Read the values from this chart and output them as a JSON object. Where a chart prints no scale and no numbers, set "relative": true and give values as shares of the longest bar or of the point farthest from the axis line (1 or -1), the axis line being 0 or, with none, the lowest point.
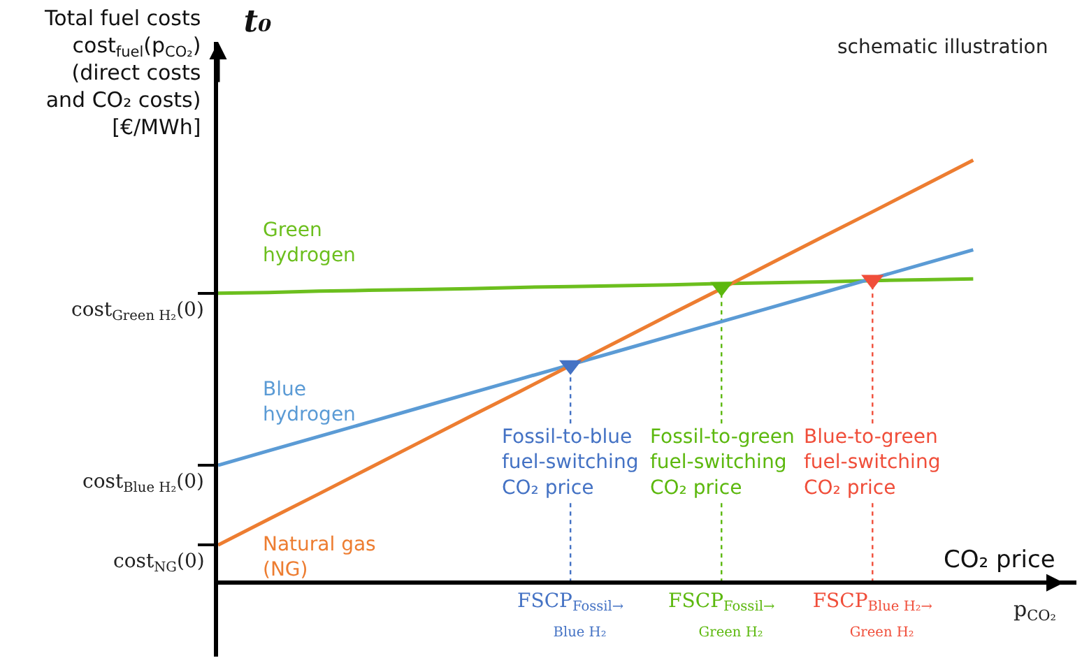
{
  "chart_data": {
    "type": "line",
    "relative": true,
    "title": "t₀",
    "ylabel": "Total fuel costs\ncost$_{fuel}$(p$_{CO₂}$)\n(direct costs\nand CO₂ costs)\n[€/MWh]",
    "xlabel": "CO₂ price",
    "categories": [
      null,
      null,
      null,
      null,
      null,
      null,
      null,
      "FSCP$_{Fossil→ Blue H₂}$",
      null,
      null,
      "FSCP$_{Fossil→ Green H₂}$",
      null,
      null,
      "FSCP$_{Blue H₂→ Green H₂}$",
      null,
      null
    ],
    "series": [
      {
        "name": "Green hydrogen",
        "color": "#6cbf1e",
        "values": [
          0.685,
          0.687,
          0.69,
          0.692,
          0.694,
          0.696,
          0.699,
          0.701,
          0.703,
          0.705,
          0.708,
          0.71,
          0.712,
          0.715,
          0.717,
          0.719
        ]
      },
      {
        "name": "Blue hydrogen",
        "color": "#5b9bd5",
        "values": [
          0.278,
          0.312,
          0.346,
          0.38,
          0.414,
          0.448,
          0.482,
          0.516,
          0.55,
          0.584,
          0.618,
          0.652,
          0.686,
          0.72,
          0.754,
          0.788
        ]
      },
      {
        "name": "Natural gas (NG)",
        "color": "#ed7d31",
        "values": [
          0.089,
          0.15,
          0.21,
          0.271,
          0.332,
          0.393,
          0.453,
          0.514,
          0.575,
          0.636,
          0.696,
          0.757,
          0.818,
          0.878,
          0.939,
          1
        ]
      },
      {
        "type": "scatter",
        "values": [
          null,
          null,
          null,
          null,
          null,
          null,
          null,
          0.515,
          null,
          null,
          0.7,
          null,
          null,
          0.717,
          null,
          null
        ],
        "colors": [
          null,
          null,
          null,
          null,
          null,
          null,
          null,
          "#4472c4",
          null,
          null,
          "#5cb80e",
          null,
          null,
          "#f04e3a",
          null,
          null
        ],
        "marker": "triangle"
      }
    ],
    "annotations": [
      "schematic illustration",
      "p$_{CO₂}$",
      "cost$_{Green H₂}$(0)",
      "cost$_{Blue H₂}$(0)",
      "cost$_{NG}$(0)",
      "Fossil-to-blue fuel-switching CO₂ price",
      "Fossil-to-green fuel-switching CO₂ price",
      "Blue-to-green fuel-switching CO₂ price"
    ],
    "grid": false,
    "legend": false,
    "line_style": "solid"
  }
}
